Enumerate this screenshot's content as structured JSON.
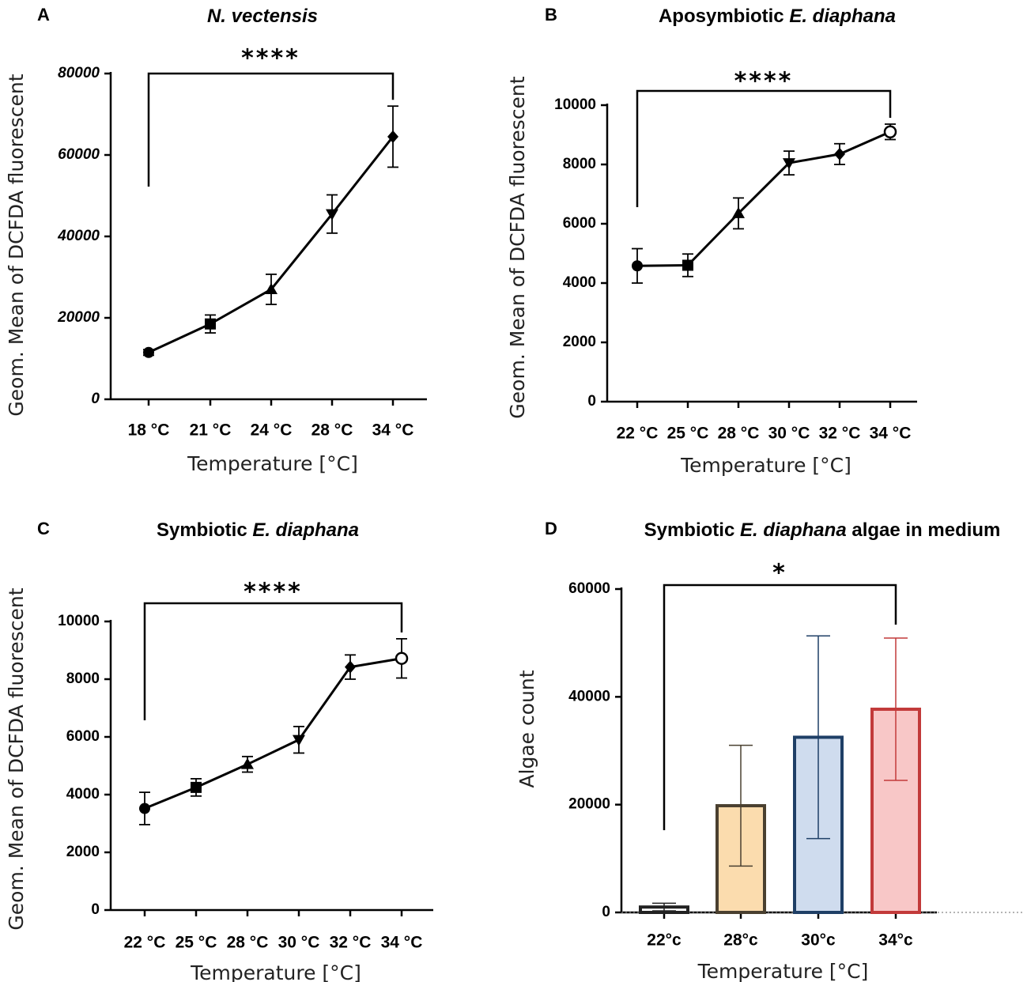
{
  "chart_data": [
    {
      "panel": "A",
      "type": "line",
      "title": "N. vectensis",
      "title_parts": [
        {
          "text": "N. vectensis",
          "italic": true
        }
      ],
      "xlabel": "Temperature [°C]",
      "ylabel": "Geom. Mean of DCFDA fluorescent",
      "categories": [
        "18 °C",
        "21 °C",
        "24 °C",
        "28 °C",
        "34 °C"
      ],
      "values": [
        11500,
        18500,
        27000,
        45500,
        64500
      ],
      "errors": [
        700,
        2200,
        3700,
        4700,
        7500
      ],
      "markers": [
        "circle",
        "square",
        "triangle-up",
        "triangle-down",
        "diamond"
      ],
      "ylim": [
        0,
        80000
      ],
      "yticks": [
        "0",
        "20000",
        "40000",
        "60000",
        "80000"
      ],
      "significance": {
        "label": "****",
        "from": 0,
        "to": 4
      }
    },
    {
      "panel": "B",
      "type": "line",
      "title": "Aposymbiotic E. diaphana",
      "title_parts": [
        {
          "text": "Aposymbiotic ",
          "italic": false
        },
        {
          "text": "E. diaphana",
          "italic": true
        }
      ],
      "xlabel": "Temperature [°C]",
      "ylabel": "Geom. Mean of DCFDA fluorescent",
      "categories": [
        "22 °C",
        "25 °C",
        "28 °C",
        "30 °C",
        "32 °C",
        "34 °C"
      ],
      "values": [
        4580,
        4600,
        6350,
        8050,
        8350,
        9100
      ],
      "errors": [
        580,
        380,
        520,
        400,
        350,
        260
      ],
      "markers": [
        "circle",
        "square",
        "triangle-up",
        "triangle-down",
        "diamond",
        "circle-open"
      ],
      "ylim": [
        0,
        10000
      ],
      "yticks": [
        "0",
        "2000",
        "4000",
        "6000",
        "8000",
        "10000"
      ],
      "significance": {
        "label": "****",
        "from": 0,
        "to": 5
      }
    },
    {
      "panel": "C",
      "type": "line",
      "title": "Symbiotic E. diaphana",
      "title_parts": [
        {
          "text": "Symbiotic ",
          "italic": false
        },
        {
          "text": "E. diaphana",
          "italic": true
        }
      ],
      "xlabel": "Temperature [°C]",
      "ylabel": "Geom. Mean of DCFDA fluorescent",
      "categories": [
        "22 °C",
        "25 °C",
        "28 °C",
        "30 °C",
        "32 °C",
        "34 °C"
      ],
      "values": [
        3520,
        4250,
        5050,
        5900,
        8420,
        8720
      ],
      "errors": [
        560,
        300,
        270,
        460,
        420,
        680
      ],
      "markers": [
        "circle",
        "square",
        "triangle-up",
        "triangle-down",
        "diamond",
        "circle-open"
      ],
      "ylim": [
        0,
        10000
      ],
      "yticks": [
        "0",
        "2000",
        "4000",
        "6000",
        "8000",
        "10000"
      ],
      "significance": {
        "label": "****",
        "from": 0,
        "to": 5
      }
    },
    {
      "panel": "D",
      "type": "bar",
      "title": "Symbiotic E. diaphana algae in medium",
      "title_parts": [
        {
          "text": "Symbiotic ",
          "italic": false
        },
        {
          "text": "E. diaphana",
          "italic": true
        },
        {
          "text": " algae in medium",
          "italic": false
        }
      ],
      "xlabel": "Temperature [°C]",
      "ylabel": "Algae count",
      "categories": [
        "22°c",
        "28°c",
        "30°c",
        "34°c"
      ],
      "values": [
        1000,
        19800,
        32500,
        37700
      ],
      "errors": [
        700,
        11200,
        18800,
        13200
      ],
      "fill_colors": [
        "#ffffff",
        "#fbdcae",
        "#cfdcee",
        "#f8c7c7"
      ],
      "edge_colors": [
        "#222222",
        "#4a4030",
        "#1f3f66",
        "#c23a3a"
      ],
      "ylim": [
        0,
        60000
      ],
      "yticks": [
        "0",
        "20000",
        "40000",
        "60000"
      ],
      "significance": {
        "label": "*",
        "from": 0,
        "to": 3
      }
    }
  ]
}
